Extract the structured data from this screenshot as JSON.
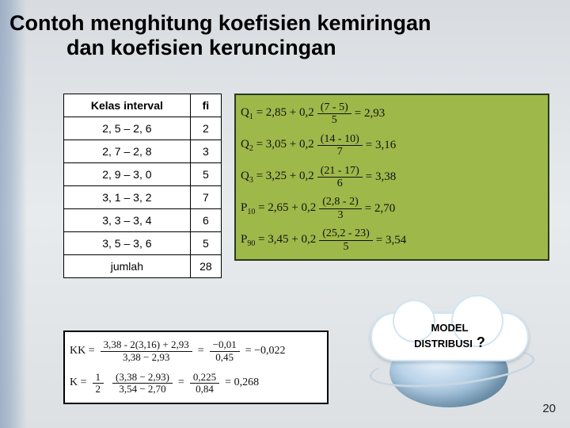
{
  "title": {
    "line1": "Contoh menghitung koefisien kemiringan",
    "line2": "dan koefisien keruncingan"
  },
  "freq_table": {
    "headers": {
      "col1": "Kelas interval",
      "col2": "fi"
    },
    "rows": [
      {
        "interval": "2, 5 – 2, 6",
        "fi": "2"
      },
      {
        "interval": "2, 7 – 2, 8",
        "fi": "3"
      },
      {
        "interval": "2, 9 – 3, 0",
        "fi": "5"
      },
      {
        "interval": "3, 1 – 3, 2",
        "fi": "7"
      },
      {
        "interval": "3, 3 – 3, 4",
        "fi": "6"
      },
      {
        "interval": "3, 5 – 3, 6",
        "fi": "5"
      }
    ],
    "total_label": "jumlah",
    "total_value": "28"
  },
  "quartiles": {
    "rows": [
      {
        "sym": "Q",
        "sub": "1",
        "pre": " = 2,85 + 0,2 ",
        "num": "(7 - 5)",
        "den": "5",
        "res": " = 2,93"
      },
      {
        "sym": "Q",
        "sub": "2",
        "pre": " = 3,05 + 0,2 ",
        "num": "(14 - 10)",
        "den": "7",
        "res": " = 3,16"
      },
      {
        "sym": "Q",
        "sub": "3",
        "pre": " = 3,25 + 0,2 ",
        "num": "(21 - 17)",
        "den": "6",
        "res": " = 3,38"
      },
      {
        "sym": "P",
        "sub": "10",
        "pre": " = 2,65 + 0,2 ",
        "num": "(2,8 - 2)",
        "den": "3",
        "res": " = 2,70"
      },
      {
        "sym": "P",
        "sub": "90",
        "pre": " = 3,45 + 0,2 ",
        "num": "(25,2 - 23)",
        "den": "5",
        "res": " = 3,54"
      }
    ],
    "box_bg": "#9fb84a",
    "box_border": "#2a3a1c"
  },
  "kk": {
    "row1": {
      "lhs": "KK = ",
      "num1": "3,38 - 2(3,16) + 2,93",
      "den1": "3,38 − 2,93",
      "mid": " = ",
      "num2": "−0,01",
      "den2": "0,45",
      "res": " = −0,022"
    },
    "row2": {
      "lhs": "K = ",
      "half_num": "1",
      "half_den": "2",
      "num1": "(3,38 − 2,93)",
      "den1": "3,54 − 2,70",
      "mid": " = ",
      "num2": "0,225",
      "den2": "0,84",
      "res": " = 0,268"
    }
  },
  "cloud": {
    "line1": "MODEL",
    "line2": "DISTRIBUSI",
    "q": " ?"
  },
  "page_number": "20"
}
